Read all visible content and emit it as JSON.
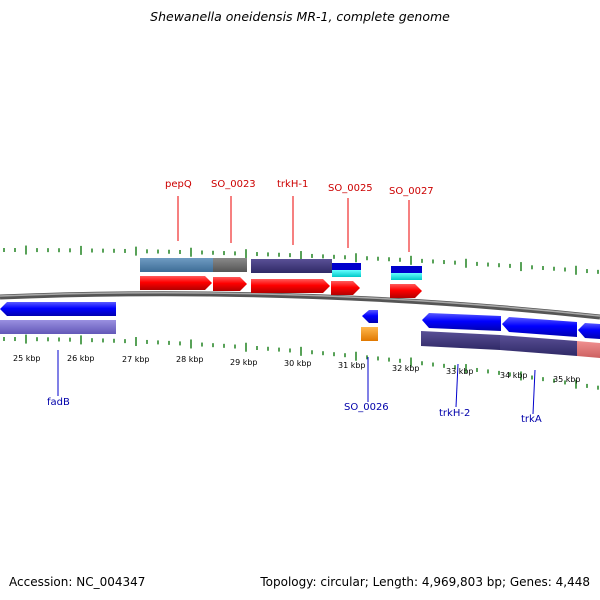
{
  "title": "Shewanella oneidensis MR-1, complete genome",
  "footer": {
    "accession": "Accession: NC_004347",
    "topology": "Topology: circular; Length: 4,969,803 bp; Genes: 4,448"
  },
  "colors": {
    "forward_gene": "#ff0000",
    "reverse_gene": "#0000ff",
    "tick": "#2e8b2e",
    "backbone": "#808080",
    "forward_label": "#cc0000",
    "reverse_label": "#0000aa"
  },
  "scale": {
    "kbp_labels": [
      "25 kbp",
      "26 kbp",
      "27 kbp",
      "28 kbp",
      "29 kbp",
      "30 kbp",
      "31 kbp",
      "32 kbp",
      "33 kbp",
      "34 kbp",
      "35 kbp"
    ]
  },
  "genes": {
    "forward_labels": [
      "pepQ",
      "SO_0023",
      "trkH-1",
      "SO_0025",
      "SO_0027"
    ],
    "reverse_labels": [
      "fadB",
      "SO_0026",
      "trkH-2",
      "trkA"
    ]
  }
}
